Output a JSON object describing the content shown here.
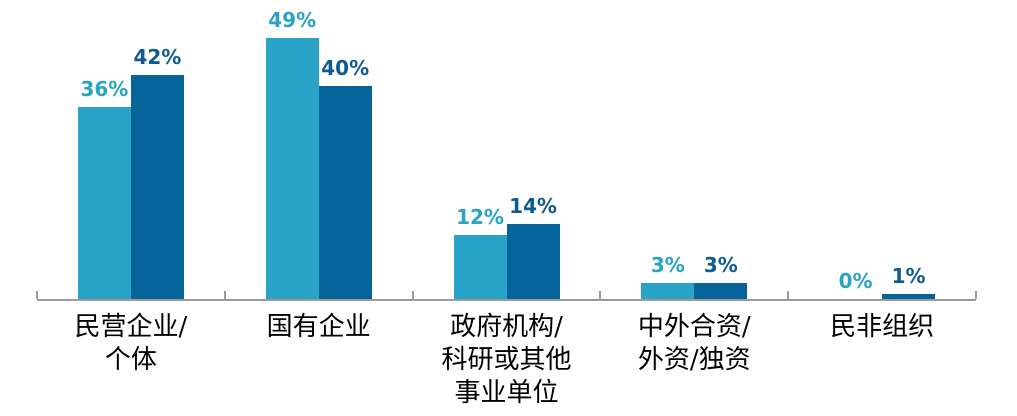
{
  "chart_data": {
    "type": "bar",
    "title": "",
    "legend": "none",
    "grid": false,
    "ylim": [
      0,
      50
    ],
    "axis_color": "#9B9B9B",
    "categories": [
      {
        "lines": [
          "民营企业/",
          "个体"
        ]
      },
      {
        "lines": [
          "国有企业"
        ]
      },
      {
        "lines": [
          "政府机构/",
          "科研或其他",
          "事业单位"
        ]
      },
      {
        "lines": [
          "中外合资/",
          "外资/独资"
        ]
      },
      {
        "lines": [
          "民非组织"
        ]
      }
    ],
    "series": [
      {
        "color": "#29A3C7",
        "label_color": "#29A3C7",
        "values": [
          36,
          49,
          12,
          3,
          0
        ],
        "labels": [
          "36%",
          "49%",
          "12%",
          "3%",
          "0%"
        ]
      },
      {
        "color": "#05659A",
        "label_color": "#0D5B90",
        "values": [
          42,
          40,
          14,
          3,
          1
        ],
        "labels": [
          "42%",
          "40%",
          "14%",
          "3%",
          "1%"
        ]
      }
    ]
  }
}
